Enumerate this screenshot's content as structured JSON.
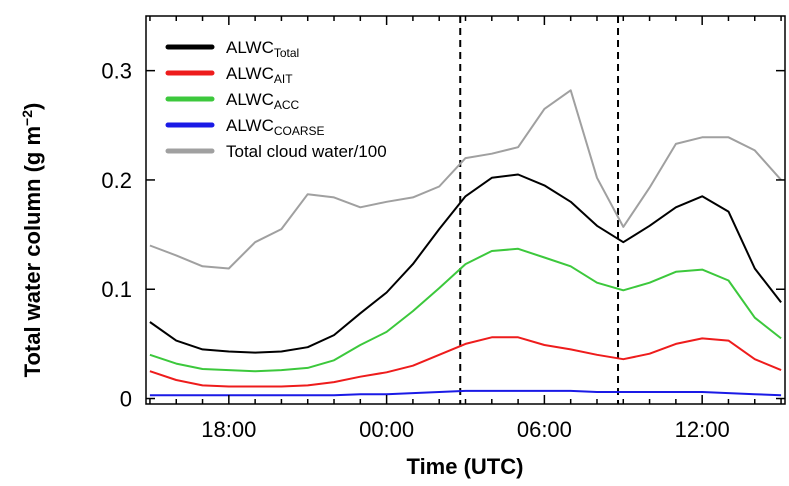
{
  "chart_data": {
    "type": "line",
    "xlabel": "Time (UTC)",
    "ylabel": "Total water column (g m",
    "ylabel_unit_exp": "−2",
    "ylabel_close": ")",
    "x_ticks": [
      "18:00",
      "00:00",
      "06:00",
      "12:00"
    ],
    "y_ticks": [
      "0",
      "0.1",
      "0.2",
      "0.3"
    ],
    "xlim": [
      14.85,
      39.15
    ],
    "ylim": [
      -0.005,
      0.35
    ],
    "x_tick_hours": [
      18,
      24,
      30,
      36
    ],
    "y_tick_values": [
      0,
      0.1,
      0.2,
      0.3
    ],
    "grid": false,
    "legend_position": "top-left",
    "vertical_lines_hours": [
      26.8,
      32.8
    ],
    "x": [
      15,
      16,
      17,
      18,
      19,
      20,
      21,
      22,
      23,
      24,
      25,
      26,
      27,
      28,
      29,
      30,
      31,
      32,
      33,
      34,
      35,
      36,
      37,
      38,
      39
    ],
    "series": [
      {
        "name": "ALWC",
        "sub": "Total",
        "color": "#000000",
        "values": [
          0.07,
          0.053,
          0.045,
          0.043,
          0.042,
          0.043,
          0.047,
          0.058,
          0.078,
          0.097,
          0.123,
          0.155,
          0.185,
          0.202,
          0.205,
          0.195,
          0.18,
          0.158,
          0.143,
          0.158,
          0.175,
          0.185,
          0.171,
          0.119,
          0.088
        ]
      },
      {
        "name": "ALWC",
        "sub": "AIT",
        "color": "#ee1c1c",
        "values": [
          0.025,
          0.017,
          0.012,
          0.011,
          0.011,
          0.011,
          0.012,
          0.015,
          0.02,
          0.024,
          0.03,
          0.04,
          0.05,
          0.056,
          0.056,
          0.049,
          0.045,
          0.04,
          0.036,
          0.041,
          0.05,
          0.055,
          0.053,
          0.036,
          0.026
        ]
      },
      {
        "name": "ALWC",
        "sub": "ACC",
        "color": "#3cc83c",
        "values": [
          0.04,
          0.032,
          0.027,
          0.026,
          0.025,
          0.026,
          0.028,
          0.035,
          0.049,
          0.061,
          0.08,
          0.101,
          0.123,
          0.135,
          0.137,
          0.129,
          0.121,
          0.106,
          0.099,
          0.106,
          0.116,
          0.118,
          0.108,
          0.074,
          0.055
        ]
      },
      {
        "name": "ALWC",
        "sub": "COARSE",
        "color": "#1a1ae6",
        "values": [
          0.003,
          0.003,
          0.003,
          0.003,
          0.003,
          0.003,
          0.003,
          0.003,
          0.004,
          0.004,
          0.005,
          0.006,
          0.007,
          0.007,
          0.007,
          0.007,
          0.007,
          0.006,
          0.006,
          0.006,
          0.006,
          0.006,
          0.005,
          0.004,
          0.003
        ]
      },
      {
        "name": "Total cloud water/100",
        "sub": "",
        "color": "#a0a0a0",
        "values": [
          0.14,
          0.131,
          0.121,
          0.119,
          0.143,
          0.155,
          0.187,
          0.184,
          0.175,
          0.18,
          0.184,
          0.194,
          0.22,
          0.224,
          0.23,
          0.265,
          0.282,
          0.202,
          0.157,
          0.193,
          0.233,
          0.239,
          0.239,
          0.227,
          0.2
        ]
      }
    ]
  }
}
